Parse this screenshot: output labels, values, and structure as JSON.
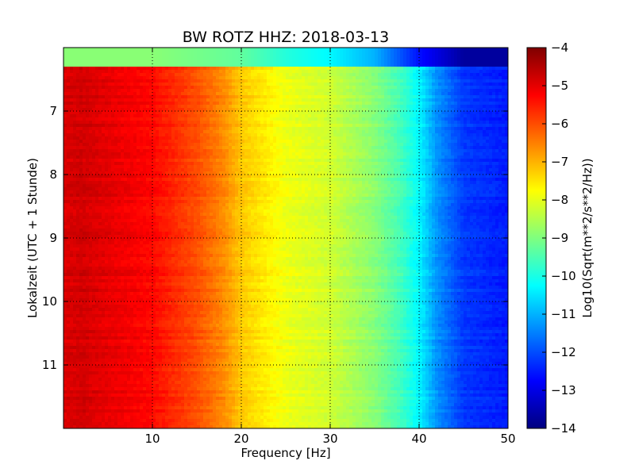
{
  "chart_data": {
    "type": "heatmap",
    "title": "BW ROTZ HHZ: 2018-03-13",
    "xlabel": "Frequency [Hz]",
    "ylabel": "Lokalzeit (UTC + 1 Stunde)",
    "xlim": [
      0,
      50
    ],
    "ylim": [
      12.0,
      6.0
    ],
    "x_ticks": [
      10,
      20,
      30,
      40,
      50
    ],
    "x_tick_labels": [
      "10",
      "20",
      "30",
      "40",
      "50"
    ],
    "y_ticks": [
      7,
      8,
      9,
      10,
      11
    ],
    "y_tick_labels": [
      "7",
      "8",
      "9",
      "10",
      "11"
    ],
    "grid": true,
    "grid_style": "dotted",
    "colormap": "jet",
    "colorbar": {
      "label": "Log10(Sqrt(m**2/s**2/Hz))",
      "vmin": -14,
      "vmax": -4,
      "ticks": [
        -4,
        -5,
        -6,
        -7,
        -8,
        -9,
        -10,
        -11,
        -12,
        -13,
        -14
      ],
      "tick_labels": [
        "−4",
        "−5",
        "−6",
        "−7",
        "−8",
        "−9",
        "−10",
        "−11",
        "−12",
        "−13",
        "−14"
      ]
    },
    "spectrum_profile": {
      "frequency_hz": [
        0,
        2,
        5,
        10,
        15,
        18,
        20,
        25,
        30,
        35,
        38,
        40,
        42,
        45,
        50
      ],
      "log10_amplitude": [
        -4.9,
        -4.8,
        -5.0,
        -5.3,
        -6.0,
        -6.6,
        -7.2,
        -7.9,
        -8.2,
        -8.9,
        -9.6,
        -10.3,
        -11.3,
        -12.2,
        -12.5
      ]
    },
    "first_segment": {
      "time_range": [
        6.0,
        6.28
      ],
      "frequency_hz": [
        0,
        10,
        20,
        25,
        30,
        35,
        40,
        45,
        50
      ],
      "log10_amplitude": [
        -8.9,
        -8.9,
        -9.3,
        -9.9,
        -10.3,
        -11.0,
        -12.6,
        -13.7,
        -13.7
      ]
    },
    "colors": {
      "jet": [
        "#00007f",
        "#0000ff",
        "#007fff",
        "#00ffff",
        "#7fff7f",
        "#ffff00",
        "#ff7f00",
        "#ff0000",
        "#7f0000"
      ]
    }
  }
}
